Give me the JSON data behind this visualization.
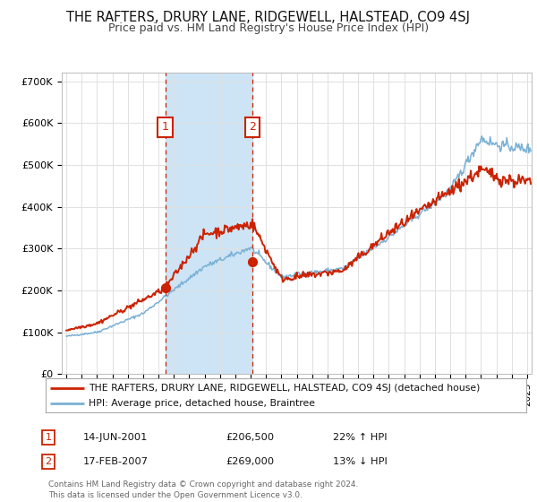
{
  "title": "THE RAFTERS, DRURY LANE, RIDGEWELL, HALSTEAD, CO9 4SJ",
  "subtitle": "Price paid vs. HM Land Registry's House Price Index (HPI)",
  "title_fontsize": 10.5,
  "subtitle_fontsize": 9,
  "ylabel_ticks": [
    "£0",
    "£100K",
    "£200K",
    "£300K",
    "£400K",
    "£500K",
    "£600K",
    "£700K"
  ],
  "ytick_vals": [
    0,
    100000,
    200000,
    300000,
    400000,
    500000,
    600000,
    700000
  ],
  "ylim": [
    0,
    720000
  ],
  "xlim_start": 1994.7,
  "xlim_end": 2025.3,
  "marker1_x": 2001.45,
  "marker1_y": 206500,
  "marker1_label": "1",
  "marker2_x": 2007.12,
  "marker2_y": 269000,
  "marker2_label": "2",
  "shade_color": "#cce4f5",
  "red_line_color": "#cc2200",
  "blue_line_color": "#7ab0d4",
  "legend_line1": "THE RAFTERS, DRURY LANE, RIDGEWELL, HALSTEAD, CO9 4SJ (detached house)",
  "legend_line2": "HPI: Average price, detached house, Braintree",
  "ann1_date": "14-JUN-2001",
  "ann1_price": "£206,500",
  "ann1_hpi": "22% ↑ HPI",
  "ann2_date": "17-FEB-2007",
  "ann2_price": "£269,000",
  "ann2_hpi": "13% ↓ HPI",
  "footer": "Contains HM Land Registry data © Crown copyright and database right 2024.\nThis data is licensed under the Open Government Licence v3.0.",
  "bg_color": "#ffffff",
  "grid_color": "#e0e0e0"
}
